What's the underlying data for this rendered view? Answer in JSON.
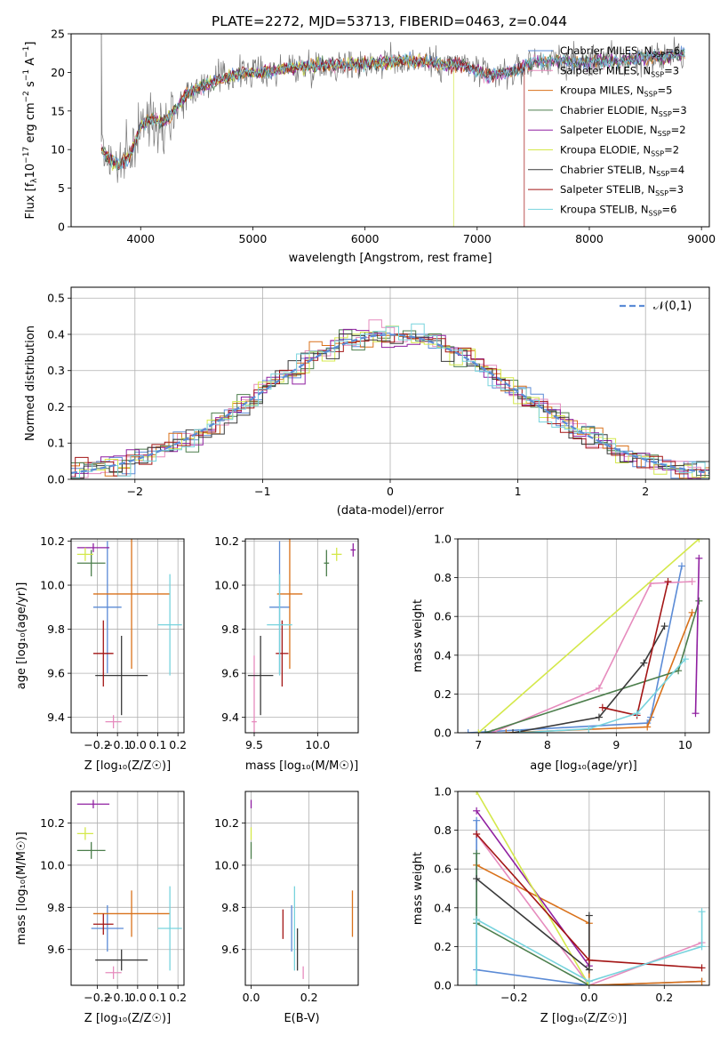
{
  "title": "PLATE=2272, MJD=53713, FIBERID=0463, z=0.044",
  "chart_data": [
    {
      "id": "spectrum",
      "type": "line",
      "xlabel": "wavelength [Angstrom, rest frame]",
      "ylabel_parts": [
        "Flux [f",
        "λ",
        "10",
        "−17",
        " erg cm",
        "−2",
        " s",
        "−1",
        " A",
        "−1",
        "]"
      ],
      "xlim": [
        3380,
        9070
      ],
      "ylim": [
        0,
        25
      ],
      "xticks": [
        4000,
        5000,
        6000,
        7000,
        8000,
        9000
      ],
      "yticks": [
        0,
        5,
        10,
        15,
        20,
        25
      ],
      "grid": false,
      "legend_position": "upper right",
      "legend": [
        {
          "label": "Chabrier MILES",
          "n": "6",
          "color": "#5b8bd6"
        },
        {
          "label": "Salpeter MILES",
          "n": "3",
          "color": "#e68bbd"
        },
        {
          "label": "Kroupa MILES",
          "n": "5",
          "color": "#d9711a"
        },
        {
          "label": "Chabrier ELODIE",
          "n": "3",
          "color": "#4c7e4c"
        },
        {
          "label": "Salpeter ELODIE",
          "n": "2",
          "color": "#8f1fa0"
        },
        {
          "label": "Kroupa ELODIE",
          "n": "2",
          "color": "#d4e84a"
        },
        {
          "label": "Chabrier STELIB",
          "n": "4",
          "color": "#3a3a3a"
        },
        {
          "label": "Salpeter STELIB",
          "n": "3",
          "color": "#a31515"
        },
        {
          "label": "Kroupa STELIB",
          "n": "6",
          "color": "#77d3dd"
        }
      ],
      "continuum": {
        "x": [
          3650,
          3700,
          3800,
          3900,
          4000,
          4100,
          4200,
          4300,
          4400,
          4500,
          4700,
          4900,
          5100,
          5300,
          5500,
          5700,
          5900,
          6100,
          6300,
          6500,
          6700,
          6900,
          7100,
          7300,
          7500,
          7700,
          7900,
          8100,
          8300,
          8500,
          8700,
          8850
        ],
        "y": [
          10,
          9,
          8,
          9,
          13,
          14,
          13.5,
          15,
          17,
          18,
          19,
          20,
          20,
          20.5,
          20.8,
          21,
          21,
          21.2,
          21.5,
          21.5,
          21,
          21,
          19.5,
          20,
          21.3,
          21.5,
          21.2,
          21.5,
          21.5,
          22,
          22,
          22.5
        ]
      },
      "drops": [
        {
          "model": "Kroupa ELODIE",
          "x": 6790
        },
        {
          "model": "Salpeter STELIB",
          "x": 7420
        }
      ]
    },
    {
      "id": "residuals",
      "type": "histogram",
      "xlabel": "(data-model)/error",
      "ylabel": "Normed distribution",
      "xlim": [
        -2.5,
        2.5
      ],
      "ylim": [
        0,
        0.53
      ],
      "xticks": [
        -2,
        -1,
        0,
        1,
        2
      ],
      "yticks": [
        0.0,
        0.1,
        0.2,
        0.3,
        0.4,
        0.5
      ],
      "grid": true,
      "legend_position": "upper right",
      "reference_label": "𝒩(0,1)",
      "reference_color": "#5b8bd6",
      "bin_width": 0.1
    },
    {
      "id": "age-vs-Z",
      "type": "errorbar",
      "xlabel": "Z [log₁₀(Z/Z☉)]",
      "ylabel": "age  [log₁₀(age/yr)]",
      "xlim": [
        -0.33,
        0.23
      ],
      "ylim": [
        9.33,
        10.21
      ],
      "xticks": [
        -0.2,
        -0.1,
        0.0,
        0.1,
        0.2
      ],
      "yticks": [
        9.4,
        9.6,
        9.8,
        10.0,
        10.2
      ],
      "grid": true,
      "points": [
        {
          "model": "Chabrier MILES",
          "x": -0.15,
          "xerr": 0.07,
          "y": 9.9,
          "yerr": 0.3
        },
        {
          "model": "Salpeter MILES",
          "x": -0.12,
          "xerr": 0.04,
          "y": 9.38,
          "yerr": 0.03
        },
        {
          "model": "Kroupa MILES",
          "x": -0.03,
          "xerr": 0.19,
          "y": 9.96,
          "yerr": 0.34
        },
        {
          "model": "Chabrier ELODIE",
          "x": -0.23,
          "xerr": 0.07,
          "y": 10.1,
          "yerr": 0.06
        },
        {
          "model": "Salpeter ELODIE",
          "x": -0.22,
          "xerr": 0.08,
          "y": 10.17,
          "yerr": 0.02
        },
        {
          "model": "Kroupa ELODIE",
          "x": -0.26,
          "xerr": 0.04,
          "y": 10.14,
          "yerr": 0.03
        },
        {
          "model": "Chabrier STELIB",
          "x": -0.08,
          "xerr": 0.13,
          "y": 9.59,
          "yerr": 0.18
        },
        {
          "model": "Salpeter STELIB",
          "x": -0.17,
          "xerr": 0.05,
          "y": 9.69,
          "yerr": 0.15
        },
        {
          "model": "Kroupa STELIB",
          "x": 0.16,
          "xerr": 0.06,
          "y": 9.82,
          "yerr": 0.23
        }
      ]
    },
    {
      "id": "age-vs-mass",
      "type": "errorbar",
      "xlabel": "mass [log₁₀(M/M☉)]",
      "ylabel": "",
      "xlim": [
        9.43,
        10.32
      ],
      "ylim": [
        9.33,
        10.21
      ],
      "xticks": [
        9.5,
        10.0
      ],
      "yticks": [
        9.4,
        9.6,
        9.8,
        10.0,
        10.2
      ],
      "grid": true,
      "points": [
        {
          "model": "Chabrier MILES",
          "x": 9.7,
          "xerr": 0.08,
          "y": 9.9,
          "yerr": 0.3
        },
        {
          "model": "Salpeter MILES",
          "x": 9.5,
          "xerr": 0.02,
          "y": 9.38,
          "yerr": 0.3
        },
        {
          "model": "Kroupa MILES",
          "x": 9.78,
          "xerr": 0.1,
          "y": 9.96,
          "yerr": 0.34
        },
        {
          "model": "Chabrier ELODIE",
          "x": 10.07,
          "xerr": 0.02,
          "y": 10.1,
          "yerr": 0.06
        },
        {
          "model": "Salpeter ELODIE",
          "x": 10.28,
          "xerr": 0.02,
          "y": 10.16,
          "yerr": 0.03
        },
        {
          "model": "Kroupa ELODIE",
          "x": 10.15,
          "xerr": 0.04,
          "y": 10.14,
          "yerr": 0.03
        },
        {
          "model": "Chabrier STELIB",
          "x": 9.55,
          "xerr": 0.1,
          "y": 9.59,
          "yerr": 0.18
        },
        {
          "model": "Salpeter STELIB",
          "x": 9.72,
          "xerr": 0.05,
          "y": 9.69,
          "yerr": 0.15
        },
        {
          "model": "Kroupa STELIB",
          "x": 9.7,
          "xerr": 0.1,
          "y": 9.82,
          "yerr": 0.23
        }
      ]
    },
    {
      "id": "massweight-vs-age",
      "type": "line",
      "xlabel": "age  [log₁₀(age/yr)]",
      "ylabel": "mass weight",
      "xlim": [
        6.7,
        10.35
      ],
      "ylim": [
        0,
        1.0
      ],
      "xticks": [
        7,
        8,
        9,
        10
      ],
      "yticks": [
        0.0,
        0.2,
        0.4,
        0.6,
        0.8,
        1.0
      ],
      "grid": true,
      "series": [
        {
          "model": "Chabrier MILES",
          "x": [
            6.85,
            9.45,
            9.5,
            9.95
          ],
          "y": [
            0.0,
            0.05,
            0.08,
            0.86
          ]
        },
        {
          "model": "Salpeter MILES",
          "x": [
            7.2,
            8.75,
            9.5,
            10.1
          ],
          "y": [
            0.0,
            0.23,
            0.77,
            0.78
          ]
        },
        {
          "model": "Kroupa MILES",
          "x": [
            7.4,
            9.45,
            10.1
          ],
          "y": [
            0.0,
            0.03,
            0.62
          ]
        },
        {
          "model": "Chabrier ELODIE",
          "x": [
            7.1,
            9.9,
            10.2
          ],
          "y": [
            0.0,
            0.32,
            0.68
          ]
        },
        {
          "model": "Salpeter ELODIE",
          "x": [
            10.15,
            10.2
          ],
          "y": [
            0.1,
            0.9
          ]
        },
        {
          "model": "Kroupa ELODIE",
          "x": [
            7.0,
            10.2
          ],
          "y": [
            0.0,
            1.0
          ]
        },
        {
          "model": "Chabrier STELIB",
          "x": [
            7.5,
            8.75,
            9.4,
            9.7
          ],
          "y": [
            0.0,
            0.08,
            0.36,
            0.55
          ]
        },
        {
          "model": "Salpeter STELIB",
          "x": [
            8.8,
            9.3,
            9.75
          ],
          "y": [
            0.13,
            0.09,
            0.78
          ]
        },
        {
          "model": "Kroupa STELIB",
          "x": [
            7.6,
            8.6,
            9.3,
            10.0
          ],
          "y": [
            0.0,
            0.02,
            0.1,
            0.38
          ]
        }
      ]
    },
    {
      "id": "mass-vs-Z",
      "type": "errorbar",
      "xlabel": "Z [log₁₀(Z/Z☉)]",
      "ylabel": "mass [log₁₀(M/M☉)]",
      "xlim": [
        -0.33,
        0.23
      ],
      "ylim": [
        9.43,
        10.35
      ],
      "xticks": [
        -0.2,
        -0.1,
        0.0,
        0.1,
        0.2
      ],
      "yticks": [
        9.6,
        9.8,
        10.0,
        10.2
      ],
      "grid": true,
      "points": [
        {
          "model": "Chabrier MILES",
          "x": -0.15,
          "xerr": 0.08,
          "y": 9.7,
          "yerr": 0.11
        },
        {
          "model": "Salpeter MILES",
          "x": -0.12,
          "xerr": 0.04,
          "y": 9.49,
          "yerr": 0.03
        },
        {
          "model": "Kroupa MILES",
          "x": -0.03,
          "xerr": 0.19,
          "y": 9.77,
          "yerr": 0.11
        },
        {
          "model": "Chabrier ELODIE",
          "x": -0.23,
          "xerr": 0.07,
          "y": 10.07,
          "yerr": 0.04
        },
        {
          "model": "Salpeter ELODIE",
          "x": -0.22,
          "xerr": 0.08,
          "y": 10.29,
          "yerr": 0.02
        },
        {
          "model": "Kroupa ELODIE",
          "x": -0.26,
          "xerr": 0.04,
          "y": 10.15,
          "yerr": 0.03
        },
        {
          "model": "Chabrier STELIB",
          "x": -0.08,
          "xerr": 0.13,
          "y": 9.55,
          "yerr": 0.05
        },
        {
          "model": "Salpeter STELIB",
          "x": -0.17,
          "xerr": 0.05,
          "y": 9.72,
          "yerr": 0.05
        },
        {
          "model": "Kroupa STELIB",
          "x": 0.16,
          "xerr": 0.06,
          "y": 9.7,
          "yerr": 0.2
        }
      ]
    },
    {
      "id": "mass-vs-ebv",
      "type": "errorbar",
      "xlabel": "E(B-V)",
      "ylabel": "",
      "xlim": [
        -0.02,
        0.37
      ],
      "ylim": [
        9.43,
        10.35
      ],
      "xticks": [
        0.0,
        0.2
      ],
      "yticks": [
        9.6,
        9.8,
        10.0,
        10.2
      ],
      "grid": true,
      "points": [
        {
          "model": "Chabrier MILES",
          "x": 0.14,
          "xerr": 0,
          "y": 9.7,
          "yerr": 0.11
        },
        {
          "model": "Salpeter MILES",
          "x": 0.18,
          "xerr": 0,
          "y": 9.49,
          "yerr": 0.03
        },
        {
          "model": "Kroupa MILES",
          "x": 0.35,
          "xerr": 0,
          "y": 9.77,
          "yerr": 0.11
        },
        {
          "model": "Chabrier ELODIE",
          "x": 0.0,
          "xerr": 0,
          "y": 10.07,
          "yerr": 0.04
        },
        {
          "model": "Salpeter ELODIE",
          "x": 0.0,
          "xerr": 0,
          "y": 10.29,
          "yerr": 0.02
        },
        {
          "model": "Kroupa ELODIE",
          "x": 0.0,
          "xerr": 0,
          "y": 10.15,
          "yerr": 0.03
        },
        {
          "model": "Chabrier STELIB",
          "x": 0.16,
          "xerr": 0,
          "y": 9.6,
          "yerr": 0.1
        },
        {
          "model": "Salpeter STELIB",
          "x": 0.11,
          "xerr": 0,
          "y": 9.72,
          "yerr": 0.07
        },
        {
          "model": "Kroupa STELIB",
          "x": 0.15,
          "xerr": 0,
          "y": 9.7,
          "yerr": 0.2
        }
      ]
    },
    {
      "id": "massweight-vs-Z",
      "type": "line",
      "xlabel": "Z [log₁₀(Z/Z☉)]",
      "ylabel": "mass weight",
      "xlim": [
        -0.35,
        0.32
      ],
      "ylim": [
        0,
        1.0
      ],
      "xticks": [
        -0.2,
        0.0,
        0.2
      ],
      "yticks": [
        0.0,
        0.2,
        0.4,
        0.6,
        0.8,
        1.0
      ],
      "grid": true,
      "series": [
        {
          "model": "Chabrier MILES",
          "x": [
            -0.3,
            -0.3,
            0.0,
            0.3
          ],
          "y": [
            0.85,
            0.08,
            0.0,
            0.02
          ]
        },
        {
          "model": "Salpeter MILES",
          "x": [
            -0.3,
            0.0,
            0.3
          ],
          "y": [
            0.78,
            0.0,
            0.22
          ]
        },
        {
          "model": "Kroupa MILES",
          "x": [
            -0.3,
            0.0,
            0.0,
            0.3
          ],
          "y": [
            0.62,
            0.32,
            0.0,
            0.02
          ]
        },
        {
          "model": "Chabrier ELODIE",
          "x": [
            -0.3,
            -0.3,
            0.0
          ],
          "y": [
            0.68,
            0.32,
            0.0
          ]
        },
        {
          "model": "Salpeter ELODIE",
          "x": [
            -0.3,
            0.0
          ],
          "y": [
            0.9,
            0.1
          ]
        },
        {
          "model": "Kroupa ELODIE",
          "x": [
            -0.3,
            0.0
          ],
          "y": [
            1.0,
            0.0
          ]
        },
        {
          "model": "Chabrier STELIB",
          "x": [
            -0.3,
            0.0,
            0.0
          ],
          "y": [
            0.55,
            0.08,
            0.36
          ]
        },
        {
          "model": "Salpeter STELIB",
          "x": [
            -0.3,
            0.0,
            0.3
          ],
          "y": [
            0.78,
            0.13,
            0.09
          ]
        },
        {
          "model": "Kroupa STELIB",
          "x": [
            -0.3,
            -0.3,
            0.0,
            0.3,
            0.3
          ],
          "y": [
            0.0,
            0.34,
            0.02,
            0.2,
            0.38
          ]
        }
      ]
    }
  ]
}
